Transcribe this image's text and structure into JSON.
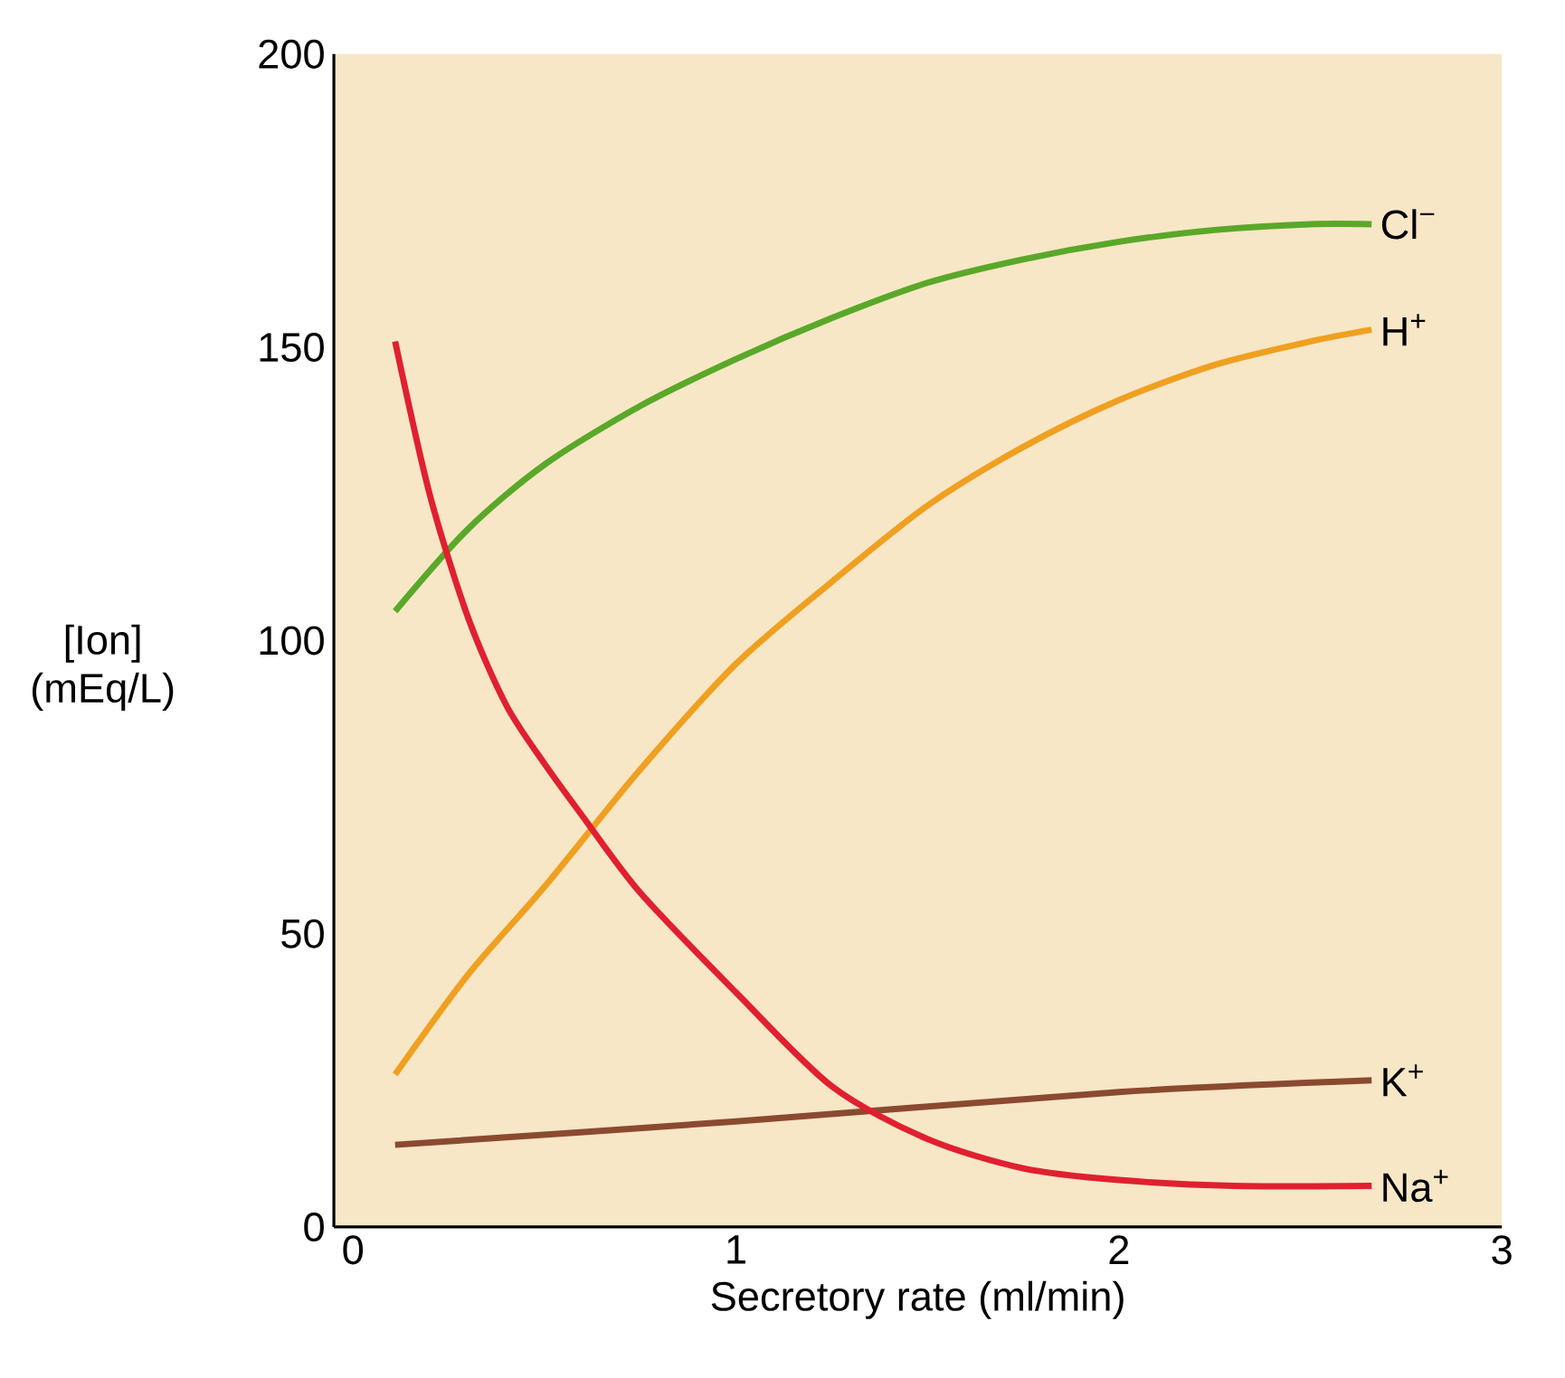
{
  "chart_data": {
    "type": "line",
    "xlabel": "Secretory rate (ml/min)",
    "ylabel": "[Ion] (mEq/L)",
    "xlim": [
      -0.05,
      3
    ],
    "ylim": [
      0,
      200
    ],
    "xticks": [
      0,
      1,
      2,
      3
    ],
    "yticks": [
      0,
      50,
      100,
      150,
      200
    ],
    "marker": "none",
    "legend": false,
    "series": [
      {
        "name": "Cl$^{−}$",
        "color": "#5aa82a",
        "x": [
          0.11,
          0.3,
          0.5,
          0.75,
          1,
          1.25,
          1.5,
          1.75,
          2,
          2.25,
          2.5,
          2.66
        ],
        "values": [
          105,
          119,
          130,
          140,
          148,
          155,
          161,
          165,
          168,
          170,
          171,
          171
        ]
      },
      {
        "name": "H$^{+}$",
        "color": "#f0a020",
        "x": [
          0.11,
          0.3,
          0.5,
          0.75,
          1,
          1.25,
          1.5,
          1.75,
          2,
          2.25,
          2.5,
          2.66
        ],
        "values": [
          26,
          43,
          58,
          78,
          96,
          110,
          123,
          133,
          141,
          147,
          151,
          153
        ]
      },
      {
        "name": "K$^{+}$",
        "color": "#8b4a30",
        "x": [
          0.11,
          1,
          2,
          2.66
        ],
        "values": [
          14,
          18,
          23,
          25
        ]
      },
      {
        "name": "Na$^{+}$",
        "color": "#e02030",
        "x": [
          0.11,
          0.2,
          0.3,
          0.4,
          0.5,
          0.6,
          0.75,
          1,
          1.25,
          1.5,
          1.75,
          2,
          2.3,
          2.66
        ],
        "values": [
          151,
          125,
          104,
          89,
          79,
          70,
          57,
          40,
          24,
          15,
          10,
          8,
          7,
          7
        ]
      }
    ]
  }
}
